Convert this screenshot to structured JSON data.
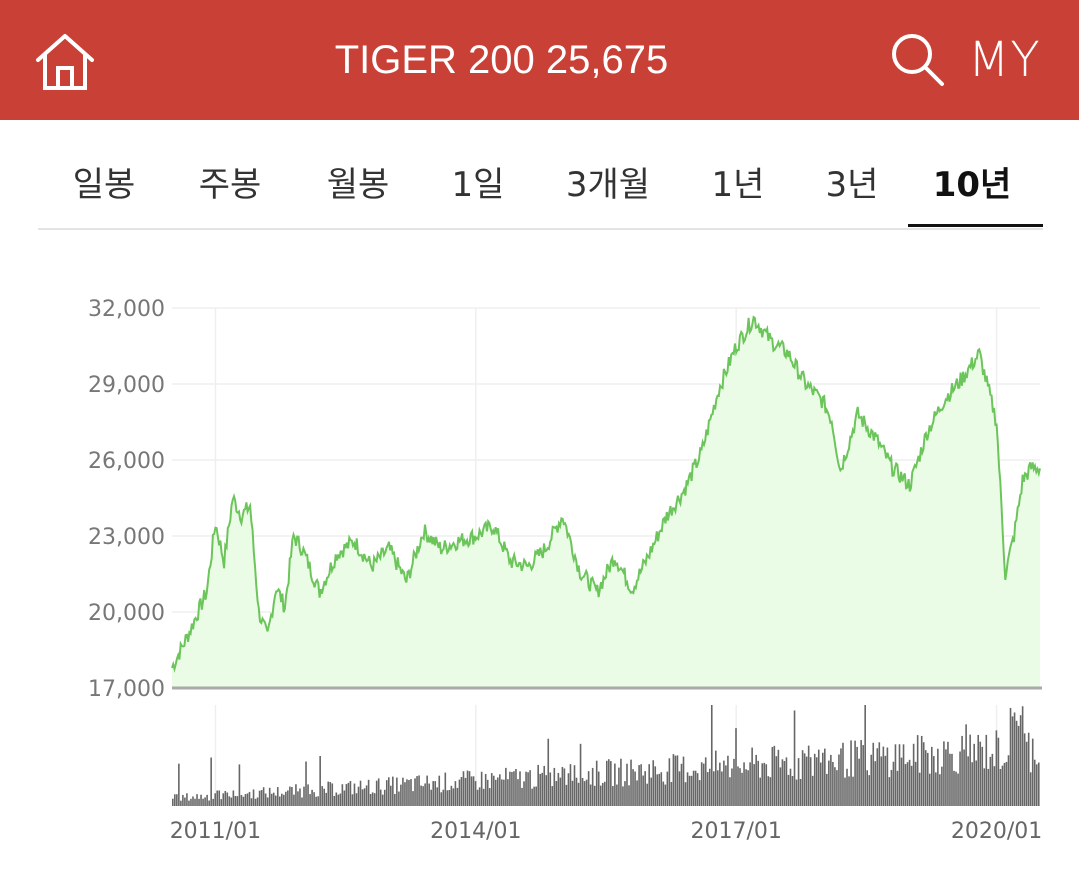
{
  "header": {
    "home_icon": "home-icon",
    "title": "TIGER 200 25,675",
    "search_icon": "search-icon",
    "my_label": "MY"
  },
  "tabs": [
    {
      "label": "일봉",
      "active": false
    },
    {
      "label": "주봉",
      "active": false
    },
    {
      "label": "월봉",
      "active": false
    },
    {
      "label": "1일",
      "active": false
    },
    {
      "label": "3개월",
      "active": false
    },
    {
      "label": "1년",
      "active": false
    },
    {
      "label": "3년",
      "active": false
    },
    {
      "label": "10년",
      "active": true
    }
  ],
  "colors": {
    "header_bg": "#c84036",
    "line": "#6cc55a",
    "fill": "#eafbe6",
    "volume": "#666666"
  },
  "chart_data": {
    "type": "area",
    "y_ticks": [
      "32,000",
      "29,000",
      "26,000",
      "23,000",
      "20,000",
      "17,000"
    ],
    "ylim": [
      17000,
      32000
    ],
    "x_ticks": [
      "2011/01",
      "2014/01",
      "2017/01",
      "2020/01"
    ],
    "xlim": [
      2010.5,
      2020.5
    ],
    "grid": true,
    "price": {
      "x": [
        2010.5,
        2010.7,
        2010.9,
        2011.0,
        2011.1,
        2011.2,
        2011.3,
        2011.4,
        2011.5,
        2011.6,
        2011.7,
        2011.8,
        2011.9,
        2012.0,
        2012.2,
        2012.4,
        2012.6,
        2012.8,
        2013.0,
        2013.2,
        2013.4,
        2013.6,
        2013.8,
        2014.0,
        2014.2,
        2014.4,
        2014.6,
        2014.8,
        2015.0,
        2015.2,
        2015.4,
        2015.6,
        2015.8,
        2016.0,
        2016.2,
        2016.4,
        2016.6,
        2016.8,
        2017.0,
        2017.2,
        2017.4,
        2017.6,
        2017.8,
        2018.0,
        2018.1,
        2018.2,
        2018.4,
        2018.6,
        2018.8,
        2019.0,
        2019.2,
        2019.4,
        2019.6,
        2019.8,
        2020.0,
        2020.1,
        2020.2,
        2020.3,
        2020.4,
        2020.5
      ],
      "y": [
        17800,
        19200,
        20800,
        23500,
        22000,
        24500,
        23800,
        24200,
        20000,
        19000,
        21000,
        20200,
        23000,
        22500,
        20800,
        22300,
        22800,
        21800,
        22500,
        21200,
        23200,
        22500,
        22800,
        23000,
        23400,
        22000,
        21800,
        22500,
        23800,
        21600,
        20800,
        22200,
        20900,
        22300,
        23800,
        24800,
        26300,
        28800,
        30500,
        31600,
        30700,
        30200,
        29000,
        28300,
        27600,
        25600,
        27800,
        26900,
        25700,
        25000,
        27100,
        28400,
        29200,
        30200,
        27500,
        21500,
        23000,
        25200,
        25700,
        25675
      ],
      "last": 25675
    },
    "volume": {
      "note": "relative daily trading volume bars, rising over time with a spike near 2020/03",
      "max_relative": 1.0
    }
  }
}
